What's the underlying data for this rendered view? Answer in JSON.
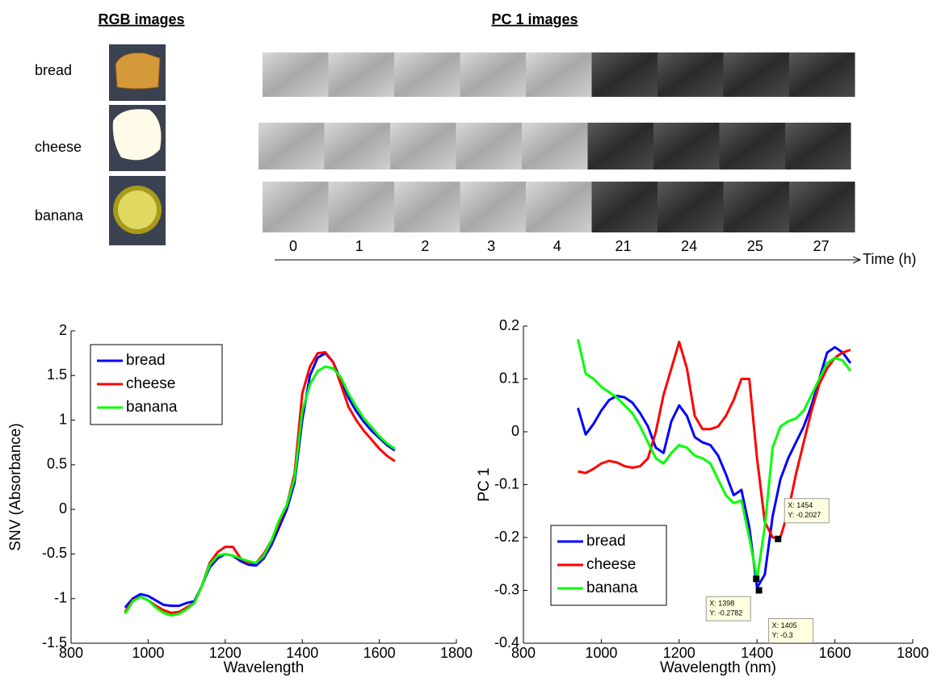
{
  "figure": {
    "rgb_title": "RGB images",
    "pc_title": "PC 1 images",
    "samples": [
      "bread",
      "cheese",
      "banana"
    ],
    "times": [
      "0",
      "1",
      "2",
      "3",
      "4",
      "21",
      "24",
      "25",
      "27"
    ],
    "time_label": "Time (h)"
  },
  "chart_data": [
    {
      "type": "line",
      "xlabel": "Wavelength",
      "ylabel": "SNV (Absorbance)",
      "xlim": [
        800,
        1800
      ],
      "xticks": [
        800,
        1000,
        1200,
        1400,
        1600,
        1800
      ],
      "ylim": [
        -1.5,
        2
      ],
      "yticks": [
        -1.5,
        -1,
        -0.5,
        0,
        0.5,
        1,
        1.5,
        2
      ],
      "legend": "upper left",
      "grid": false,
      "x": [
        940,
        960,
        980,
        1000,
        1020,
        1040,
        1060,
        1080,
        1100,
        1120,
        1140,
        1160,
        1180,
        1200,
        1220,
        1240,
        1260,
        1280,
        1300,
        1320,
        1340,
        1360,
        1380,
        1400,
        1420,
        1440,
        1460,
        1480,
        1500,
        1520,
        1540,
        1560,
        1580,
        1600,
        1620,
        1640
      ],
      "series": [
        {
          "name": "bread",
          "color": "#0000ff",
          "values": [
            -1.1,
            -1.0,
            -0.95,
            -0.97,
            -1.02,
            -1.07,
            -1.08,
            -1.08,
            -1.05,
            -1.03,
            -0.85,
            -0.65,
            -0.55,
            -0.5,
            -0.52,
            -0.58,
            -0.62,
            -0.63,
            -0.55,
            -0.4,
            -0.2,
            0.0,
            0.3,
            1.0,
            1.5,
            1.7,
            1.75,
            1.65,
            1.45,
            1.25,
            1.1,
            0.98,
            0.88,
            0.8,
            0.72,
            0.66
          ]
        },
        {
          "name": "cheese",
          "color": "#ff0000",
          "values": [
            -1.15,
            -1.02,
            -0.98,
            -1.02,
            -1.08,
            -1.13,
            -1.16,
            -1.15,
            -1.1,
            -1.05,
            -0.85,
            -0.6,
            -0.48,
            -0.42,
            -0.42,
            -0.55,
            -0.6,
            -0.6,
            -0.5,
            -0.35,
            -0.15,
            0.05,
            0.4,
            1.3,
            1.6,
            1.75,
            1.76,
            1.65,
            1.4,
            1.15,
            1.0,
            0.88,
            0.78,
            0.68,
            0.6,
            0.54
          ]
        },
        {
          "name": "banana",
          "color": "#00ff00",
          "values": [
            -1.17,
            -1.03,
            -0.98,
            -1.02,
            -1.1,
            -1.16,
            -1.19,
            -1.17,
            -1.12,
            -1.05,
            -0.85,
            -0.62,
            -0.52,
            -0.5,
            -0.52,
            -0.55,
            -0.58,
            -0.6,
            -0.52,
            -0.35,
            -0.12,
            0.05,
            0.35,
            1.1,
            1.4,
            1.55,
            1.6,
            1.58,
            1.48,
            1.3,
            1.15,
            1.02,
            0.92,
            0.82,
            0.74,
            0.68
          ]
        }
      ]
    },
    {
      "type": "line",
      "xlabel": "Wavelength (nm)",
      "ylabel": "PC 1",
      "xlim": [
        800,
        1800
      ],
      "xticks": [
        800,
        1000,
        1200,
        1400,
        1600,
        1800
      ],
      "ylim": [
        -0.4,
        0.2
      ],
      "yticks": [
        -0.4,
        -0.3,
        -0.2,
        -0.1,
        0,
        0.1,
        0.2
      ],
      "legend": "lower left",
      "grid": false,
      "x": [
        940,
        960,
        980,
        1000,
        1020,
        1040,
        1060,
        1080,
        1100,
        1120,
        1140,
        1160,
        1180,
        1200,
        1220,
        1240,
        1260,
        1280,
        1300,
        1320,
        1340,
        1360,
        1380,
        1400,
        1420,
        1440,
        1460,
        1480,
        1500,
        1520,
        1540,
        1560,
        1580,
        1600,
        1620,
        1640
      ],
      "series": [
        {
          "name": "bread",
          "color": "#0000ff",
          "values": [
            0.045,
            -0.005,
            0.015,
            0.04,
            0.06,
            0.068,
            0.065,
            0.055,
            0.035,
            0.01,
            -0.03,
            -0.04,
            0.02,
            0.05,
            0.03,
            -0.01,
            -0.02,
            -0.025,
            -0.045,
            -0.08,
            -0.12,
            -0.11,
            -0.18,
            -0.295,
            -0.27,
            -0.16,
            -0.09,
            -0.05,
            -0.02,
            0.01,
            0.05,
            0.1,
            0.15,
            0.16,
            0.15,
            0.13
          ]
        },
        {
          "name": "cheese",
          "color": "#ff0000",
          "values": [
            -0.075,
            -0.078,
            -0.07,
            -0.06,
            -0.055,
            -0.058,
            -0.065,
            -0.068,
            -0.065,
            -0.05,
            0.0,
            0.07,
            0.12,
            0.17,
            0.12,
            0.03,
            0.005,
            0.005,
            0.01,
            0.03,
            0.06,
            0.1,
            0.1,
            -0.05,
            -0.17,
            -0.2,
            -0.2,
            -0.15,
            -0.08,
            -0.02,
            0.04,
            0.09,
            0.12,
            0.14,
            0.15,
            0.155
          ]
        },
        {
          "name": "banana",
          "color": "#00ff00",
          "values": [
            0.175,
            0.11,
            0.1,
            0.085,
            0.075,
            0.065,
            0.05,
            0.035,
            0.01,
            -0.02,
            -0.05,
            -0.06,
            -0.04,
            -0.025,
            -0.03,
            -0.045,
            -0.05,
            -0.06,
            -0.09,
            -0.12,
            -0.135,
            -0.13,
            -0.2,
            -0.278,
            -0.18,
            -0.03,
            0.01,
            0.02,
            0.025,
            0.04,
            0.07,
            0.1,
            0.13,
            0.14,
            0.135,
            0.115
          ]
        }
      ],
      "datatips": [
        {
          "x": 1398,
          "y": -0.2782,
          "x_label": "X: 1398",
          "y_label": "Y: -0.2782"
        },
        {
          "x": 1405,
          "y": -0.3,
          "x_label": "X: 1405",
          "y_label": "Y: -0.3"
        },
        {
          "x": 1454,
          "y": -0.2027,
          "x_label": "X: 1454",
          "y_label": "Y: -0.2027"
        }
      ]
    }
  ]
}
